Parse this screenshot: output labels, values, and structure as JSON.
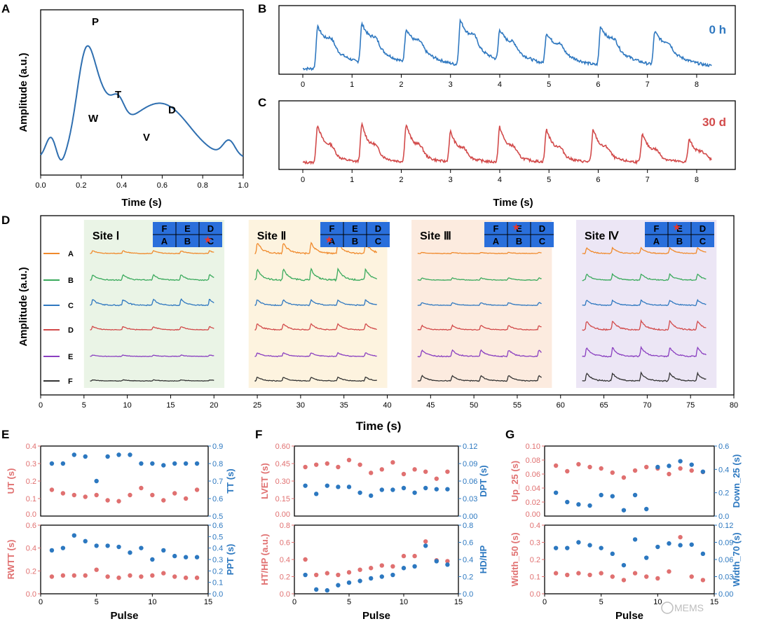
{
  "colors": {
    "blue": "#2f6fb0",
    "red": "#d24a4a",
    "dotRed": "#e07070",
    "dotBlue": "#2c78c0",
    "siteBlue": "#2a6fdb"
  },
  "panelA": {
    "letter": "A",
    "ylabel": "Amplitude (a.u.)",
    "xlabel": "Time (s)",
    "xticks": [
      "0.0",
      "0.2",
      "0.4",
      "0.6",
      "0.8",
      "1.0"
    ],
    "annotations": [
      {
        "t": "P"
      },
      {
        "t": "T"
      },
      {
        "t": "W"
      },
      {
        "t": "D"
      },
      {
        "t": "V"
      }
    ]
  },
  "panelB": {
    "letter": "B",
    "tag": "0 h",
    "xticks": [
      "0",
      "1",
      "2",
      "3",
      "4",
      "5",
      "6",
      "7",
      "8"
    ]
  },
  "panelC": {
    "letter": "C",
    "tag": "30 d",
    "xticks": [
      "0",
      "1",
      "2",
      "3",
      "4",
      "5",
      "6",
      "7",
      "8"
    ]
  },
  "bcXlabel": "Time (s)",
  "panelD": {
    "letter": "D",
    "ylabel": "Amplitude (a.u.)",
    "xlabel": "Time (s)",
    "xticks": [
      "0",
      "5",
      "10",
      "15",
      "20",
      "25",
      "30",
      "35",
      "40",
      "45",
      "50",
      "55",
      "60",
      "65",
      "70",
      "75",
      "80"
    ],
    "rows": [
      "A",
      "B",
      "C",
      "D",
      "E",
      "F"
    ],
    "rowColors": [
      "#f08a2c",
      "#3aaa5c",
      "#2f78c0",
      "#d24a4a",
      "#8a3fc0",
      "#333333"
    ],
    "gridTop": [
      "F",
      "E",
      "D"
    ],
    "gridBottom": [
      "A",
      "B",
      "C"
    ],
    "sites": [
      {
        "name": "Site Ⅰ",
        "bg": "#eaf4e6"
      },
      {
        "name": "Site Ⅱ",
        "bg": "#fdf3df"
      },
      {
        "name": "Site Ⅲ",
        "bg": "#fcebdf"
      },
      {
        "name": "Site Ⅳ",
        "bg": "#ece6f5"
      }
    ]
  },
  "panelE": {
    "letter": "E",
    "xlabel": "Pulse",
    "top": {
      "leftLabel": "UT (s)",
      "rightLabel": "TT (s)",
      "lyticks": [
        "0.0",
        "0.1",
        "0.2",
        "0.3",
        "0.4"
      ],
      "ryticks": [
        "0.5",
        "0.6",
        "0.7",
        "0.8",
        "0.9"
      ],
      "lmax": 0.4,
      "rmin": 0.5,
      "rmax": 0.9,
      "red": [
        0.15,
        0.13,
        0.12,
        0.11,
        0.12,
        0.09,
        0.085,
        0.12,
        0.16,
        0.12,
        0.09,
        0.13,
        0.1,
        0.15
      ],
      "blue": [
        0.8,
        0.8,
        0.85,
        0.84,
        0.7,
        0.84,
        0.85,
        0.85,
        0.8,
        0.8,
        0.79,
        0.8,
        0.8,
        0.8
      ]
    },
    "bottom": {
      "leftLabel": "RWTT (s)",
      "rightLabel": "PPT (s)",
      "lyticks": [
        "0.0",
        "0.2",
        "0.4",
        "0.6"
      ],
      "ryticks": [
        "0.0",
        "0.1",
        "0.2",
        "0.3",
        "0.4",
        "0.5",
        "0.6"
      ],
      "lmax": 0.6,
      "rmin": 0,
      "rmax": 0.6,
      "red": [
        0.15,
        0.16,
        0.16,
        0.16,
        0.21,
        0.15,
        0.14,
        0.16,
        0.15,
        0.16,
        0.18,
        0.15,
        0.14,
        0.14
      ],
      "blue": [
        0.38,
        0.4,
        0.51,
        0.46,
        0.42,
        0.42,
        0.41,
        0.36,
        0.4,
        0.3,
        0.38,
        0.33,
        0.32,
        0.32
      ]
    },
    "xticks": [
      "0",
      "5",
      "10",
      "15"
    ]
  },
  "panelF": {
    "letter": "F",
    "xlabel": "Pulse",
    "top": {
      "leftLabel": "LVET (s)",
      "rightLabel": "DPT (s)",
      "lyticks": [
        "0.00",
        "0.15",
        "0.30",
        "0.45",
        "0.60"
      ],
      "ryticks": [
        "0.00",
        "0.03",
        "0.06",
        "0.09",
        "0.12"
      ],
      "lmax": 0.6,
      "rmin": 0,
      "rmax": 0.12,
      "red": [
        0.42,
        0.44,
        0.45,
        0.42,
        0.48,
        0.44,
        0.37,
        0.4,
        0.46,
        0.36,
        0.4,
        0.38,
        0.32,
        0.38
      ],
      "blue": [
        0.052,
        0.038,
        0.052,
        0.05,
        0.05,
        0.04,
        0.035,
        0.045,
        0.045,
        0.048,
        0.04,
        0.048,
        0.046,
        0.046
      ]
    },
    "bottom": {
      "leftLabel": "HT/HP (a.u.)",
      "rightLabel": "HD/HP",
      "lyticks": [
        "0.0",
        "0.2",
        "0.4",
        "0.6",
        "0.8"
      ],
      "ryticks": [
        "0.0",
        "0.2",
        "0.4",
        "0.6",
        "0.8"
      ],
      "lmax": 0.8,
      "rmin": 0,
      "rmax": 0.8,
      "red": [
        0.4,
        0.22,
        0.24,
        0.22,
        0.25,
        0.28,
        0.3,
        0.33,
        0.32,
        0.44,
        0.44,
        0.61,
        0.39,
        0.38
      ],
      "blue": [
        0.22,
        0.05,
        0.04,
        0.1,
        0.13,
        0.15,
        0.18,
        0.2,
        0.22,
        0.3,
        0.32,
        0.56,
        0.38,
        0.34
      ]
    },
    "xticks": [
      "0",
      "5",
      "10",
      "15"
    ]
  },
  "panelG": {
    "letter": "G",
    "xlabel": "Pulse",
    "top": {
      "leftLabel": "Up_25 (s)",
      "rightLabel": "Down_25 (s)",
      "lyticks": [
        "0.00",
        "0.02",
        "0.04",
        "0.06",
        "0.08",
        "0.10"
      ],
      "ryticks": [
        "0.0",
        "0.2",
        "0.4",
        "0.6"
      ],
      "lmax": 0.1,
      "rmin": 0,
      "rmax": 0.6,
      "red": [
        0.072,
        0.064,
        0.074,
        0.07,
        0.068,
        0.062,
        0.055,
        0.065,
        0.07,
        0.068,
        0.06,
        0.068,
        0.065,
        0.063
      ],
      "blue": [
        0.2,
        0.12,
        0.1,
        0.09,
        0.18,
        0.17,
        0.05,
        0.18,
        0.06,
        0.42,
        0.43,
        0.47,
        0.44,
        0.38
      ]
    },
    "bottom": {
      "leftLabel": "Width_50 (s)",
      "rightLabel": "Width_70 (s)",
      "lyticks": [
        "0.0",
        "0.1",
        "0.2",
        "0.3",
        "0.4"
      ],
      "ryticks": [
        "0.00",
        "0.03",
        "0.06",
        "0.09",
        "0.12"
      ],
      "lmax": 0.4,
      "rmin": 0,
      "rmax": 0.12,
      "red": [
        0.12,
        0.11,
        0.12,
        0.11,
        0.12,
        0.1,
        0.08,
        0.12,
        0.1,
        0.09,
        0.13,
        0.33,
        0.1,
        0.08
      ],
      "blue": [
        0.08,
        0.08,
        0.09,
        0.085,
        0.08,
        0.07,
        0.05,
        0.095,
        0.063,
        0.082,
        0.088,
        0.085,
        0.086,
        0.07
      ]
    },
    "xticks": [
      "0",
      "5",
      "10",
      "15"
    ]
  },
  "watermark": "MEMS"
}
